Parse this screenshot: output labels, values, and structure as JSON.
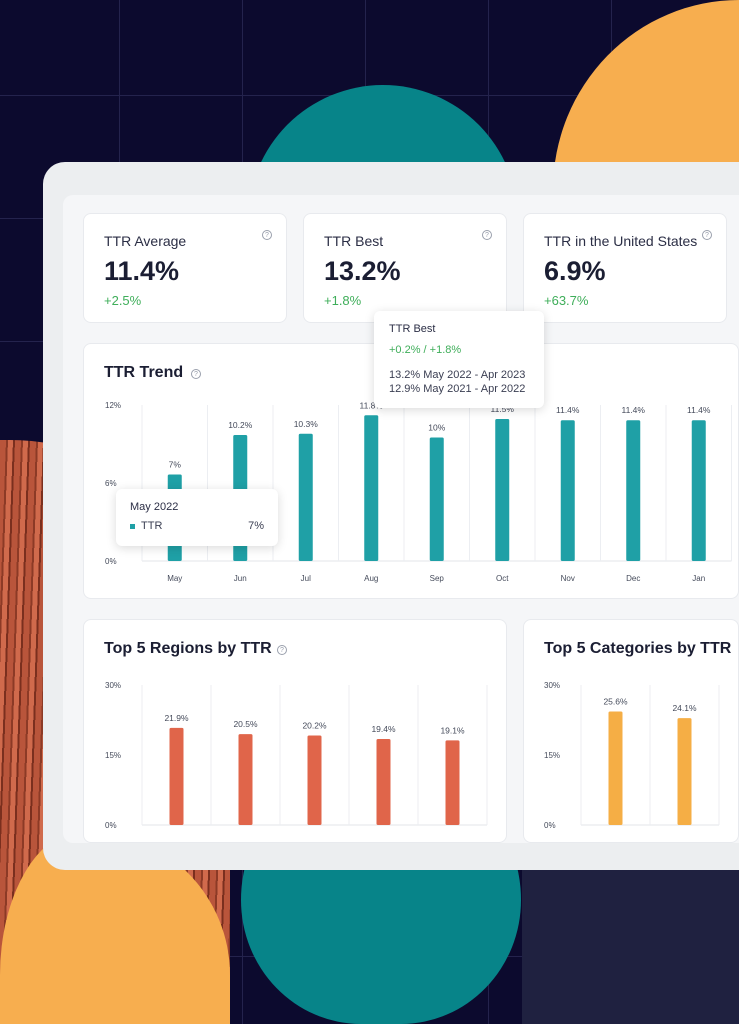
{
  "kpis": [
    {
      "title": "TTR Average",
      "value": "11.4%",
      "delta": "+2.5%"
    },
    {
      "title": "TTR Best",
      "value": "13.2%",
      "delta": "+1.8%"
    },
    {
      "title": "TTR in the United States",
      "value": "6.9%",
      "delta": "+63.7%"
    }
  ],
  "best_tooltip": {
    "title": "TTR Best",
    "delta": "+0.2% / +1.8%",
    "line1_value": "13.2%",
    "line1_range": "May 2022 - Apr 2023",
    "line2_value": "12.9%",
    "line2_range": "May 2021 - Apr 2022"
  },
  "trend": {
    "title": "TTR Trend",
    "tooltip": {
      "title": "May 2022",
      "series": "TTR",
      "value": "7%"
    }
  },
  "regions": {
    "title": "Top 5 Regions by TTR"
  },
  "categories_panel": {
    "title": "Top 5 Categories by TTR"
  },
  "colors": {
    "teal": "#1fa0a6",
    "orange": "#e0654a",
    "amber": "#f5ae45",
    "positive": "#3fae5a"
  },
  "chart_data": [
    {
      "type": "bar",
      "title": "TTR Trend",
      "categories": [
        "May",
        "Jun",
        "Jul",
        "Aug",
        "Sep",
        "Oct",
        "Nov",
        "Dec",
        "Jan"
      ],
      "values": [
        7,
        10.2,
        10.3,
        11.8,
        10,
        11.5,
        11.4,
        11.4,
        11.4
      ],
      "labels": [
        "7%",
        "10.2%",
        "10.3%",
        "11.8%",
        "10%",
        "11.5%",
        "11.4%",
        "11.4%",
        "11.4%"
      ],
      "yticks": [
        "0%",
        "6%",
        "12%"
      ],
      "ylim": [
        0,
        12
      ],
      "grid": true,
      "color": "#1fa0a6"
    },
    {
      "type": "bar",
      "title": "Top 5 Regions by TTR",
      "categories": [
        "",
        "",
        "",
        "",
        ""
      ],
      "values": [
        21.9,
        20.5,
        20.2,
        19.4,
        19.1
      ],
      "labels": [
        "21.9%",
        "20.5%",
        "20.2%",
        "19.4%",
        "19.1%"
      ],
      "yticks": [
        "0%",
        "15%",
        "30%"
      ],
      "ylim": [
        0,
        30
      ],
      "grid": true,
      "color": "#e0654a"
    },
    {
      "type": "bar",
      "title": "Top 5 Categories by TTR",
      "categories": [
        "",
        ""
      ],
      "values": [
        25.6,
        24.1
      ],
      "labels": [
        "25.6%",
        "24.1%"
      ],
      "yticks": [
        "0%",
        "15%",
        "30%"
      ],
      "ylim": [
        0,
        30
      ],
      "grid": true,
      "color": "#f5ae45"
    }
  ]
}
